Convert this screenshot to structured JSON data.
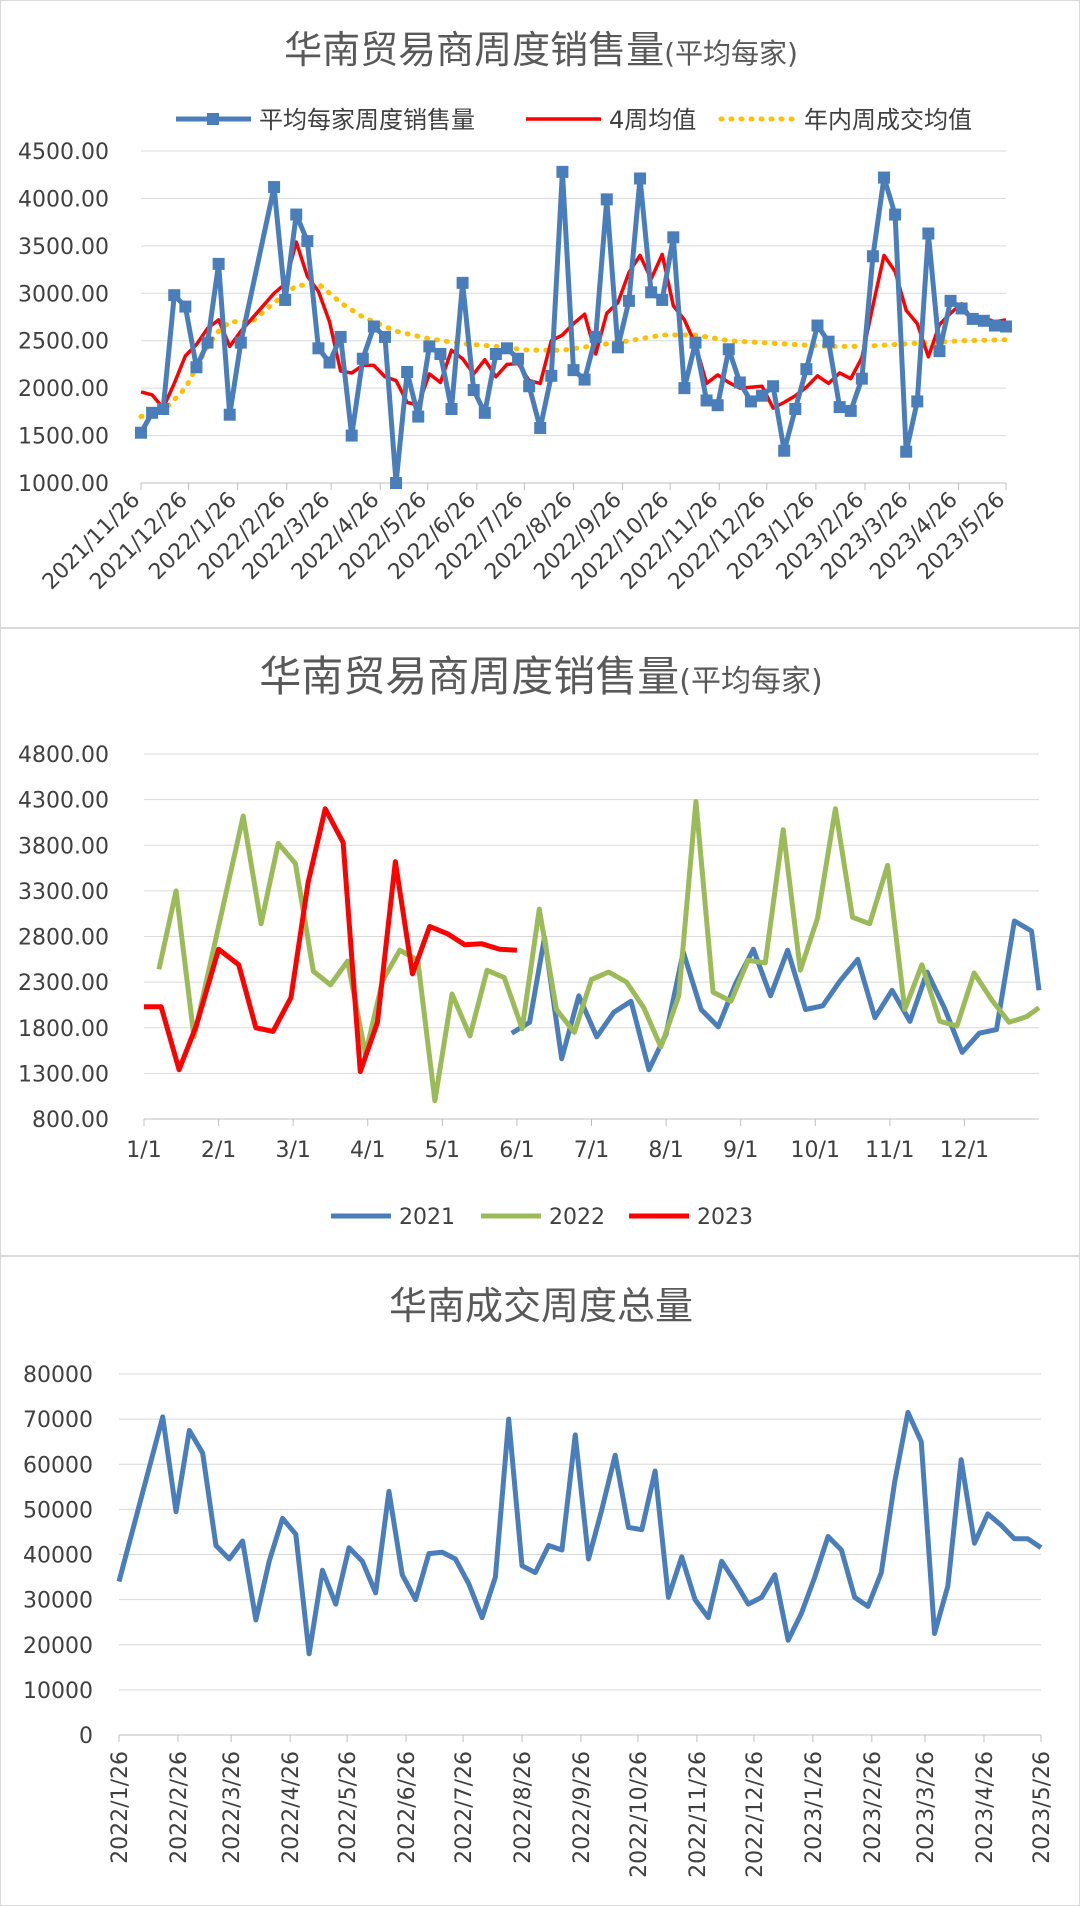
{
  "chart_data": [
    {
      "type": "line",
      "title": "华南贸易商周度销售量",
      "title_suffix": "(平均每家)",
      "xlabel": "",
      "ylabel": "",
      "ylim": [
        1000,
        4500
      ],
      "y_ticks": [
        "1000.00",
        "1500.00",
        "2000.00",
        "2500.00",
        "3000.00",
        "3500.00",
        "4000.00",
        "4500.00"
      ],
      "x_tick_labels": [
        "2021/11/26",
        "2021/12/26",
        "2022/1/26",
        "2022/2/26",
        "2022/3/26",
        "2022/4/26",
        "2022/5/26",
        "2022/6/26",
        "2022/7/26",
        "2022/8/26",
        "2022/9/26",
        "2022/10/26",
        "2022/11/26",
        "2022/12/26",
        "2023/1/26",
        "2023/2/26",
        "2023/3/26",
        "2023/4/26",
        "2023/5/26"
      ],
      "grid": true,
      "legend_position": "top",
      "series": [
        {
          "name": "平均每家周度销售量",
          "color": "#4a7ebb",
          "style": "line-square-markers",
          "x": [
            "2021-11-26",
            "2021-12-03",
            "2021-12-10",
            "2021-12-17",
            "2021-12-24",
            "2021-12-31",
            "2022-01-07",
            "2022-01-14",
            "2022-01-21",
            "2022-01-28",
            "2022-02-18",
            "2022-02-25",
            "2022-03-04",
            "2022-03-11",
            "2022-03-18",
            "2022-03-25",
            "2022-04-01",
            "2022-04-08",
            "2022-04-15",
            "2022-04-22",
            "2022-04-29",
            "2022-05-06",
            "2022-05-13",
            "2022-05-20",
            "2022-05-27",
            "2022-06-03",
            "2022-06-10",
            "2022-06-17",
            "2022-06-24",
            "2022-07-01",
            "2022-07-08",
            "2022-07-15",
            "2022-07-22",
            "2022-07-29",
            "2022-08-05",
            "2022-08-12",
            "2022-08-19",
            "2022-08-26",
            "2022-09-02",
            "2022-09-09",
            "2022-09-16",
            "2022-09-23",
            "2022-09-30",
            "2022-10-07",
            "2022-10-14",
            "2022-10-21",
            "2022-10-28",
            "2022-11-04",
            "2022-11-11",
            "2022-11-18",
            "2022-11-25",
            "2022-12-02",
            "2022-12-09",
            "2022-12-16",
            "2022-12-23",
            "2022-12-30",
            "2023-01-06",
            "2023-01-13",
            "2023-01-20",
            "2023-01-27",
            "2023-02-03",
            "2023-02-10",
            "2023-02-17",
            "2023-02-24",
            "2023-03-03",
            "2023-03-10",
            "2023-03-17",
            "2023-03-24",
            "2023-03-31",
            "2023-04-07",
            "2023-04-14",
            "2023-04-21",
            "2023-04-28",
            "2023-05-05",
            "2023-05-12",
            "2023-05-19",
            "2023-05-26"
          ],
          "values": [
            1530,
            1740,
            1780,
            2980,
            2860,
            2220,
            2480,
            3310,
            1720,
            2480,
            4120,
            2930,
            3830,
            3550,
            2420,
            2270,
            2540,
            1500,
            2310,
            2650,
            2540,
            1000,
            2170,
            1700,
            2440,
            2360,
            1780,
            3110,
            1980,
            1740,
            2360,
            2420,
            2310,
            2020,
            1580,
            2130,
            4280,
            2190,
            2090,
            2540,
            3990,
            2430,
            2920,
            4210,
            3010,
            2930,
            3590,
            2000,
            2480,
            1870,
            1820,
            2410,
            2060,
            1860,
            1920,
            2020,
            1340,
            1780,
            2200,
            2660,
            2490,
            1800,
            1760,
            2100,
            3390,
            4220,
            3830,
            1330,
            1860,
            3630,
            2390,
            2920,
            2840,
            2730,
            2710,
            2660,
            2650
          ]
        },
        {
          "name": "4周均值",
          "color": "#ff0000",
          "style": "line",
          "x": [
            "2021-11-26",
            "2021-12-03",
            "2021-12-10",
            "2021-12-17",
            "2021-12-24",
            "2021-12-31",
            "2022-01-07",
            "2022-01-14",
            "2022-01-21",
            "2022-01-28",
            "2022-02-18",
            "2022-02-25",
            "2022-03-04",
            "2022-03-11",
            "2022-03-18",
            "2022-03-25",
            "2022-04-01",
            "2022-04-08",
            "2022-04-15",
            "2022-04-22",
            "2022-04-29",
            "2022-05-06",
            "2022-05-13",
            "2022-05-20",
            "2022-05-27",
            "2022-06-03",
            "2022-06-10",
            "2022-06-17",
            "2022-06-24",
            "2022-07-01",
            "2022-07-08",
            "2022-07-15",
            "2022-07-22",
            "2022-07-29",
            "2022-08-05",
            "2022-08-12",
            "2022-08-19",
            "2022-08-26",
            "2022-09-02",
            "2022-09-09",
            "2022-09-16",
            "2022-09-23",
            "2022-09-30",
            "2022-10-07",
            "2022-10-14",
            "2022-10-21",
            "2022-10-28",
            "2022-11-04",
            "2022-11-11",
            "2022-11-18",
            "2022-11-25",
            "2022-12-02",
            "2022-12-09",
            "2022-12-16",
            "2022-12-23",
            "2022-12-30",
            "2023-01-06",
            "2023-01-13",
            "2023-01-20",
            "2023-01-27",
            "2023-02-03",
            "2023-02-10",
            "2023-02-17",
            "2023-02-24",
            "2023-03-03",
            "2023-03-10",
            "2023-03-17",
            "2023-03-24",
            "2023-03-31",
            "2023-04-07",
            "2023-04-14",
            "2023-04-21",
            "2023-04-28",
            "2023-05-05",
            "2023-05-12",
            "2023-05-19",
            "2023-05-26"
          ],
          "values": [
            1960,
            1930,
            1790,
            2050,
            2340,
            2460,
            2630,
            2720,
            2440,
            2600,
            3000,
            3100,
            3540,
            3180,
            3020,
            2700,
            2180,
            2160,
            2240,
            2240,
            2120,
            2080,
            1850,
            1820,
            2150,
            2060,
            2400,
            2310,
            2150,
            2300,
            2120,
            2250,
            2260,
            2080,
            2050,
            2500,
            2560,
            2680,
            2780,
            2360,
            2790,
            2900,
            3220,
            3400,
            3150,
            3410,
            2870,
            2720,
            2460,
            2050,
            2140,
            2060,
            2000,
            2010,
            2020,
            1790,
            1850,
            1920,
            2010,
            2130,
            2050,
            2160,
            2100,
            2320,
            2870,
            3400,
            3230,
            2820,
            2680,
            2330,
            2670,
            2790,
            2890,
            2710,
            2740,
            2700,
            2720
          ]
        },
        {
          "name": "年内周成交均值",
          "color": "#ffc000",
          "style": "dotted",
          "x": [
            "2021-11-26",
            "2021-12-10",
            "2021-12-24",
            "2022-01-07",
            "2022-01-14",
            "2022-01-21",
            "2022-02-04",
            "2022-02-18",
            "2022-03-04",
            "2022-03-18",
            "2022-04-01",
            "2022-04-15",
            "2022-05-06",
            "2022-05-27",
            "2022-06-17",
            "2022-07-08",
            "2022-07-29",
            "2022-08-19",
            "2022-09-09",
            "2022-09-30",
            "2022-10-21",
            "2022-11-11",
            "2022-12-02",
            "2022-12-23",
            "2023-01-13",
            "2023-02-03",
            "2023-02-24",
            "2023-03-17",
            "2023-04-07",
            "2023-04-28",
            "2023-05-26"
          ],
          "values": [
            1700,
            1760,
            2000,
            2440,
            2600,
            2700,
            2700,
            2900,
            3080,
            3100,
            2900,
            2750,
            2600,
            2520,
            2470,
            2440,
            2400,
            2400,
            2450,
            2500,
            2560,
            2560,
            2500,
            2480,
            2460,
            2440,
            2440,
            2460,
            2480,
            2500,
            2510
          ]
        }
      ]
    },
    {
      "type": "line",
      "title": "华南贸易商周度销售量",
      "title_suffix": "(平均每家)",
      "xlabel": "",
      "ylabel": "",
      "ylim": [
        800,
        4800
      ],
      "y_ticks": [
        "800.00",
        "1300.00",
        "1800.00",
        "2300.00",
        "2800.00",
        "3300.00",
        "3800.00",
        "4300.00",
        "4800.00"
      ],
      "categories": [
        "1/1",
        "2/1",
        "3/1",
        "4/1",
        "5/1",
        "6/1",
        "7/1",
        "8/1",
        "9/1",
        "10/1",
        "11/1",
        "12/1"
      ],
      "grid": true,
      "legend_position": "bottom",
      "series": [
        {
          "name": "2021",
          "color": "#4a7ebb",
          "x": [
            5.93,
            6.17,
            6.37,
            6.6,
            6.83,
            7.07,
            7.3,
            7.53,
            7.77,
            8.0,
            8.23,
            8.47,
            8.7,
            8.93,
            9.17,
            9.4,
            9.63,
            9.87,
            10.1,
            10.33,
            10.57,
            10.8,
            11.03,
            11.27,
            11.5,
            11.73,
            11.97,
            12.2,
            12.43,
            12.67,
            12.9,
            13.0
          ],
          "values": [
            1740,
            1860,
            2790,
            1460,
            2150,
            1700,
            1970,
            2090,
            1340,
            1730,
            2630,
            2000,
            1810,
            2280,
            2660,
            2150,
            2650,
            2000,
            2040,
            2310,
            2550,
            1910,
            2210,
            1870,
            2410,
            2020,
            1530,
            1740,
            1780,
            2970,
            2860,
            2210
          ]
        },
        {
          "name": "2022",
          "color": "#9bbb59",
          "x": [
            1.2,
            1.43,
            1.67,
            2.33,
            2.57,
            2.8,
            3.03,
            3.27,
            3.5,
            3.73,
            3.97,
            4.2,
            4.43,
            4.67,
            4.9,
            5.13,
            5.37,
            5.6,
            5.83,
            6.07,
            6.3,
            6.53,
            6.77,
            7.0,
            7.23,
            7.47,
            7.7,
            7.93,
            8.17,
            8.4,
            8.63,
            8.87,
            9.1,
            9.33,
            9.57,
            9.8,
            10.03,
            10.27,
            10.5,
            10.73,
            10.97,
            11.2,
            11.43,
            11.67,
            11.9,
            12.13,
            12.37,
            12.6,
            12.83,
            13.0
          ],
          "values": [
            2440,
            3300,
            1700,
            4120,
            2940,
            3820,
            3600,
            2420,
            2270,
            2530,
            1510,
            2320,
            2650,
            2540,
            1000,
            2170,
            1710,
            2430,
            2350,
            1790,
            3100,
            2000,
            1750,
            2330,
            2410,
            2300,
            2020,
            1590,
            2150,
            4280,
            2190,
            2090,
            2540,
            2510,
            3970,
            2430,
            3000,
            4200,
            3010,
            2940,
            3580,
            2000,
            2490,
            1870,
            1820,
            2400,
            2100,
            1860,
            1920,
            2020
          ]
        },
        {
          "name": "2023",
          "color": "#ff0000",
          "x": [
            1.0,
            1.23,
            1.47,
            1.7,
            2.0,
            2.27,
            2.5,
            2.73,
            2.97,
            3.2,
            3.43,
            3.67,
            3.9,
            4.13,
            4.37,
            4.6,
            4.83,
            5.07,
            5.3,
            5.53,
            5.77,
            6.0
          ],
          "values": [
            2030,
            2030,
            1340,
            1820,
            2660,
            2490,
            1800,
            1760,
            2130,
            3390,
            4200,
            3830,
            1320,
            1860,
            3620,
            2390,
            2910,
            2830,
            2710,
            2720,
            2660,
            2650
          ]
        }
      ]
    },
    {
      "type": "line",
      "title": "华南成交周度总量",
      "xlabel": "",
      "ylabel": "",
      "ylim": [
        0,
        80000
      ],
      "y_ticks": [
        "0",
        "10000",
        "20000",
        "30000",
        "40000",
        "50000",
        "60000",
        "70000",
        "80000"
      ],
      "x_tick_labels": [
        "2022/1/26",
        "2022/2/26",
        "2022/3/26",
        "2022/4/26",
        "2022/5/26",
        "2022/6/26",
        "2022/7/26",
        "2022/8/26",
        "2022/9/26",
        "2022/10/26",
        "2022/11/26",
        "2022/12/26",
        "2023/1/26",
        "2023/2/26",
        "2023/3/26",
        "2023/4/26",
        "2023/5/26"
      ],
      "grid": true,
      "series": [
        {
          "name": "",
          "color": "#4a7ebb",
          "x": [
            "2022-01-26",
            "2022-02-18",
            "2022-02-25",
            "2022-03-04",
            "2022-03-11",
            "2022-03-18",
            "2022-03-25",
            "2022-04-01",
            "2022-04-08",
            "2022-04-15",
            "2022-04-22",
            "2022-04-29",
            "2022-05-06",
            "2022-05-13",
            "2022-05-20",
            "2022-05-27",
            "2022-06-03",
            "2022-06-10",
            "2022-06-17",
            "2022-06-24",
            "2022-07-01",
            "2022-07-08",
            "2022-07-15",
            "2022-07-22",
            "2022-07-29",
            "2022-08-05",
            "2022-08-12",
            "2022-08-19",
            "2022-08-26",
            "2022-09-02",
            "2022-09-09",
            "2022-09-16",
            "2022-09-23",
            "2022-09-30",
            "2022-10-07",
            "2022-10-14",
            "2022-10-21",
            "2022-10-28",
            "2022-11-04",
            "2022-11-11",
            "2022-11-18",
            "2022-11-25",
            "2022-12-02",
            "2022-12-09",
            "2022-12-16",
            "2022-12-23",
            "2022-12-30",
            "2023-01-06",
            "2023-01-13",
            "2023-01-20",
            "2023-01-27",
            "2023-02-03",
            "2023-02-10",
            "2023-02-17",
            "2023-02-24",
            "2023-03-03",
            "2023-03-10",
            "2023-03-17",
            "2023-03-24",
            "2023-03-31",
            "2023-04-07",
            "2023-04-14",
            "2023-04-21",
            "2023-04-28",
            "2023-05-05",
            "2023-05-12",
            "2023-05-19",
            "2023-05-26"
          ],
          "values": [
            34000,
            70500,
            49500,
            67500,
            62500,
            42000,
            39000,
            43000,
            25500,
            38500,
            48000,
            44500,
            18000,
            36500,
            29000,
            41500,
            38500,
            31500,
            54000,
            35500,
            30000,
            40200,
            40500,
            39000,
            33500,
            26000,
            35000,
            70000,
            37500,
            36000,
            42000,
            41000,
            66500,
            39000,
            50000,
            62000,
            46000,
            45500,
            58500,
            30500,
            39500,
            30000,
            26000,
            38500,
            34000,
            29000,
            30500,
            35500,
            21000,
            27000,
            35000,
            44000,
            41000,
            30500,
            28500,
            36000,
            56000,
            71500,
            65000,
            22500,
            33000,
            61000,
            42500,
            49000,
            46500,
            43500,
            43500,
            41500
          ]
        }
      ]
    }
  ]
}
